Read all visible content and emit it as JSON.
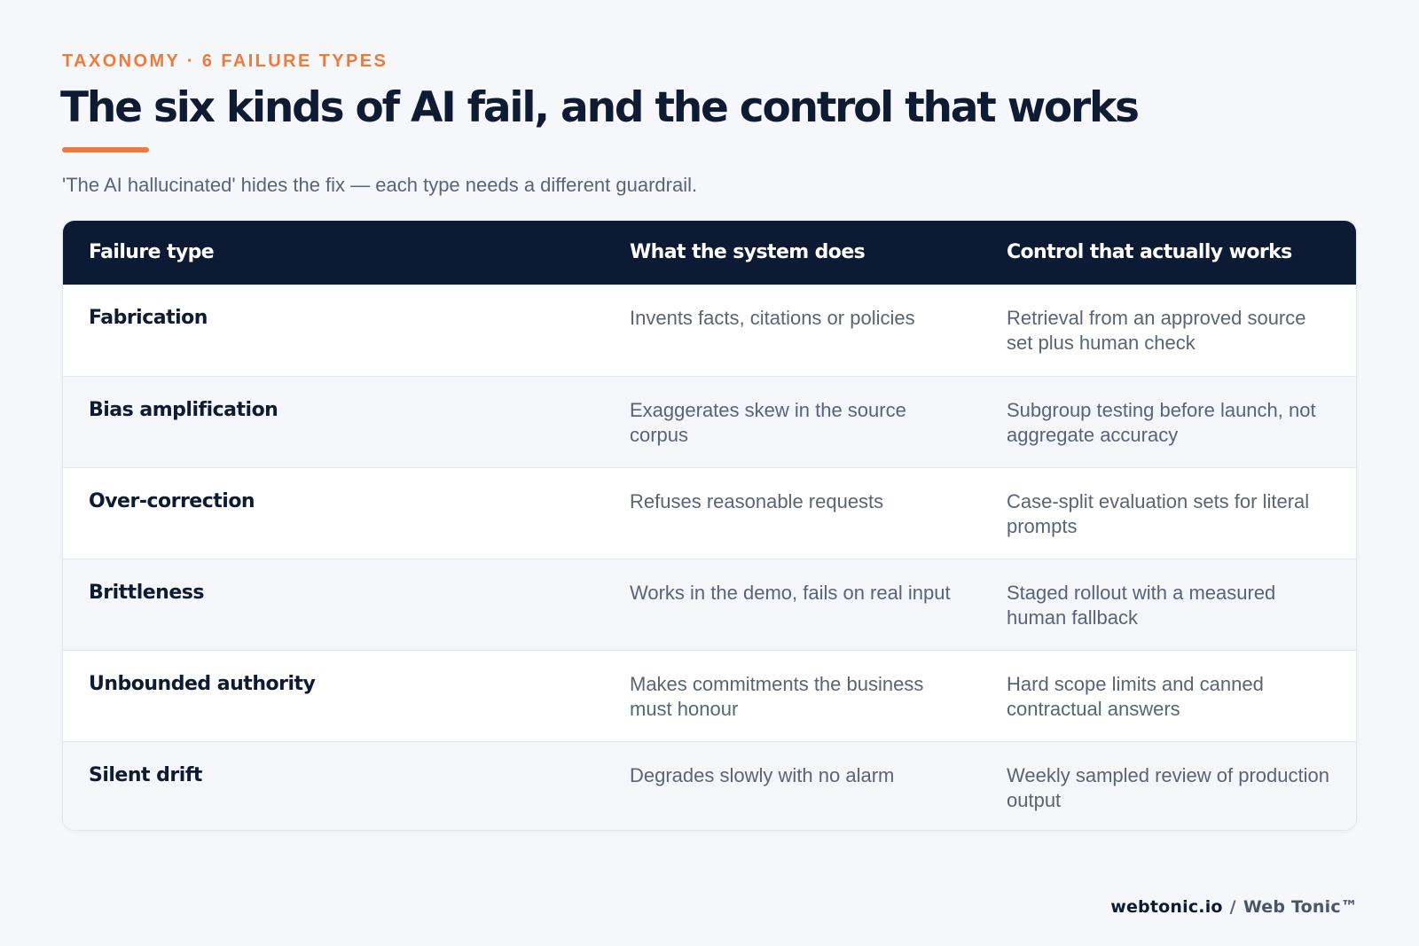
{
  "header": {
    "eyebrow": "TAXONOMY · 6 FAILURE TYPES",
    "title": "The six kinds of AI fail, and the control that works",
    "subtitle": "'The AI hallucinated' hides the fix — each type needs a different guardrail."
  },
  "colors": {
    "accent": "#f07a3a",
    "header_bg": "#0c1a33",
    "text_dark": "#0f1b33",
    "text_muted": "#5a6474",
    "page_bg": "#f5f7fa"
  },
  "table": {
    "columns": [
      "Failure type",
      "What the system does",
      "Control that actually works"
    ],
    "rows": [
      {
        "type": "Fabrication",
        "does": "Invents facts, citations or policies",
        "control": "Retrieval from an approved source set plus human check"
      },
      {
        "type": "Bias amplification",
        "does": "Exaggerates skew in the source corpus",
        "control": "Subgroup testing before launch, not aggregate accuracy"
      },
      {
        "type": "Over-correction",
        "does": "Refuses reasonable requests",
        "control": "Case-split evaluation sets for literal prompts"
      },
      {
        "type": "Brittleness",
        "does": "Works in the demo, fails on real input",
        "control": "Staged rollout with a measured human fallback"
      },
      {
        "type": "Unbounded authority",
        "does": "Makes commitments the business must honour",
        "control": "Hard scope limits and canned contractual answers"
      },
      {
        "type": "Silent drift",
        "does": "Degrades slowly with no alarm",
        "control": "Weekly sampled review of production output"
      }
    ]
  },
  "footer": {
    "site": "webtonic.io",
    "separator": "/",
    "brand": "Web Tonic™"
  }
}
